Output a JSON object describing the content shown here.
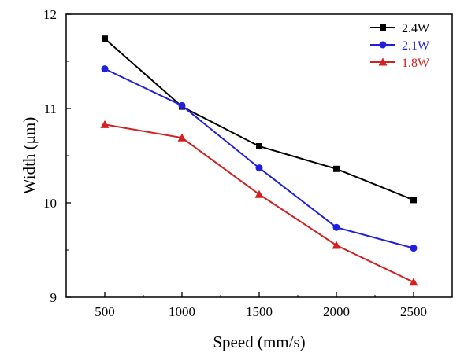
{
  "chart_data": {
    "type": "line",
    "xlabel": "Speed (mm/s)",
    "ylabel": "Width (μm)",
    "x": [
      500,
      1000,
      1500,
      2000,
      2500
    ],
    "xlim": [
      250,
      2750
    ],
    "ylim": [
      9,
      12
    ],
    "xticks": [
      "500",
      "1000",
      "1500",
      "2000",
      "2500"
    ],
    "yticks": [
      "9",
      "10",
      "11",
      "12"
    ],
    "grid": false,
    "legend_position": "top-right",
    "series": [
      {
        "name": "2.4W",
        "color": "#000000",
        "marker": "square",
        "values": [
          11.74,
          11.02,
          10.6,
          10.36,
          10.03
        ]
      },
      {
        "name": "2.1W",
        "color": "#1f1fe0",
        "marker": "circle",
        "values": [
          11.42,
          11.03,
          10.37,
          9.74,
          9.52
        ]
      },
      {
        "name": "1.8W",
        "color": "#d42020",
        "marker": "triangle",
        "values": [
          10.83,
          10.69,
          10.09,
          9.55,
          9.16
        ]
      }
    ]
  }
}
